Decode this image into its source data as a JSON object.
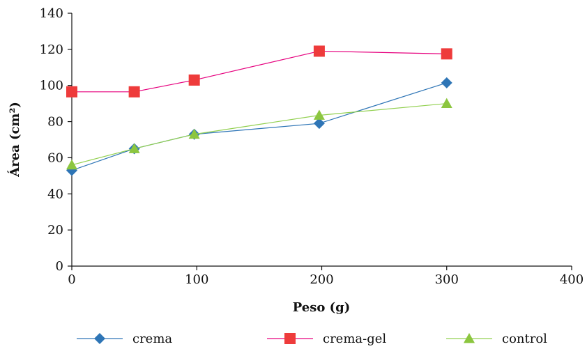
{
  "chart_data": {
    "type": "line",
    "title": "",
    "xlabel": "Peso (g)",
    "ylabel": "Área (cm²)",
    "xlim": [
      0,
      400
    ],
    "ylim": [
      0,
      140
    ],
    "xticks": [
      0,
      100,
      200,
      300,
      400
    ],
    "xtick_labels": [
      "0",
      "100",
      "200",
      "300",
      "400"
    ],
    "yticks": [
      0,
      20,
      40,
      60,
      80,
      100,
      120,
      140
    ],
    "ytick_labels": [
      "0",
      "20",
      "40",
      "60",
      "80",
      "100",
      "120",
      "140"
    ],
    "grid": false,
    "legend_position": "bottom",
    "series": [
      {
        "name": "crema",
        "color": "#2e75b6",
        "marker": "diamond",
        "x": [
          0,
          50,
          98,
          198,
          300
        ],
        "y": [
          53,
          65,
          73,
          79,
          101.5
        ]
      },
      {
        "name": "crema-gel",
        "color": "#e6007e",
        "marker_color": "#ee3b3b",
        "marker": "square",
        "x": [
          0,
          50,
          98,
          198,
          300
        ],
        "y": [
          96.5,
          96.5,
          103,
          119,
          117.5
        ]
      },
      {
        "name": "control",
        "color": "#92d050",
        "marker_color": "#8cc63f",
        "marker": "triangle",
        "x": [
          0,
          50,
          98,
          198,
          300
        ],
        "y": [
          56,
          65,
          73,
          83.5,
          90
        ]
      }
    ]
  }
}
